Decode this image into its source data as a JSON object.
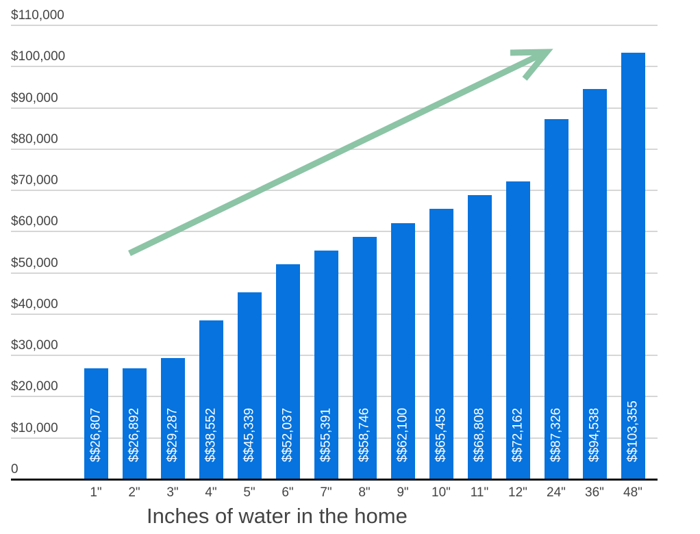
{
  "chart_data": {
    "type": "bar",
    "title": "",
    "xlabel": "Inches of water in the home",
    "ylabel": "",
    "ylim": [
      0,
      110000
    ],
    "grid": true,
    "legend": "none",
    "categories": [
      "1\"",
      "2\"",
      "3\"",
      "4\"",
      "5\"",
      "6\"",
      "7\"",
      "8\"",
      "9\"",
      "10\"",
      "11\"",
      "12\"",
      "24\"",
      "36\"",
      "48\""
    ],
    "values": [
      26807,
      26892,
      29287,
      38552,
      45339,
      52037,
      55391,
      58746,
      62100,
      65453,
      68808,
      72162,
      87326,
      94538,
      103355
    ],
    "data_labels": [
      "$$26,807",
      "$$26,892",
      "$$29,287",
      "$$38,552",
      "$$45,339",
      "$$52,037",
      "$$55,391",
      "$$58,746",
      "$$62,100",
      "$$65,453",
      "$$68,808",
      "$$72,162",
      "$$87,326",
      "$$94,538",
      "$$103,355"
    ],
    "y_ticks": [
      "0",
      "$10,000",
      "$20,000",
      "$30,000",
      "$40,000",
      "$50,000",
      "$60,000",
      "$70,000",
      "$80,000",
      "$90,000",
      "$100,000",
      "$110,000"
    ],
    "annotations": [
      "green upward trend arrow"
    ],
    "colors": {
      "bar": "#0673de",
      "arrow": "#8cc4a6",
      "grid": "#d6d6d6",
      "text": "#444444"
    }
  }
}
